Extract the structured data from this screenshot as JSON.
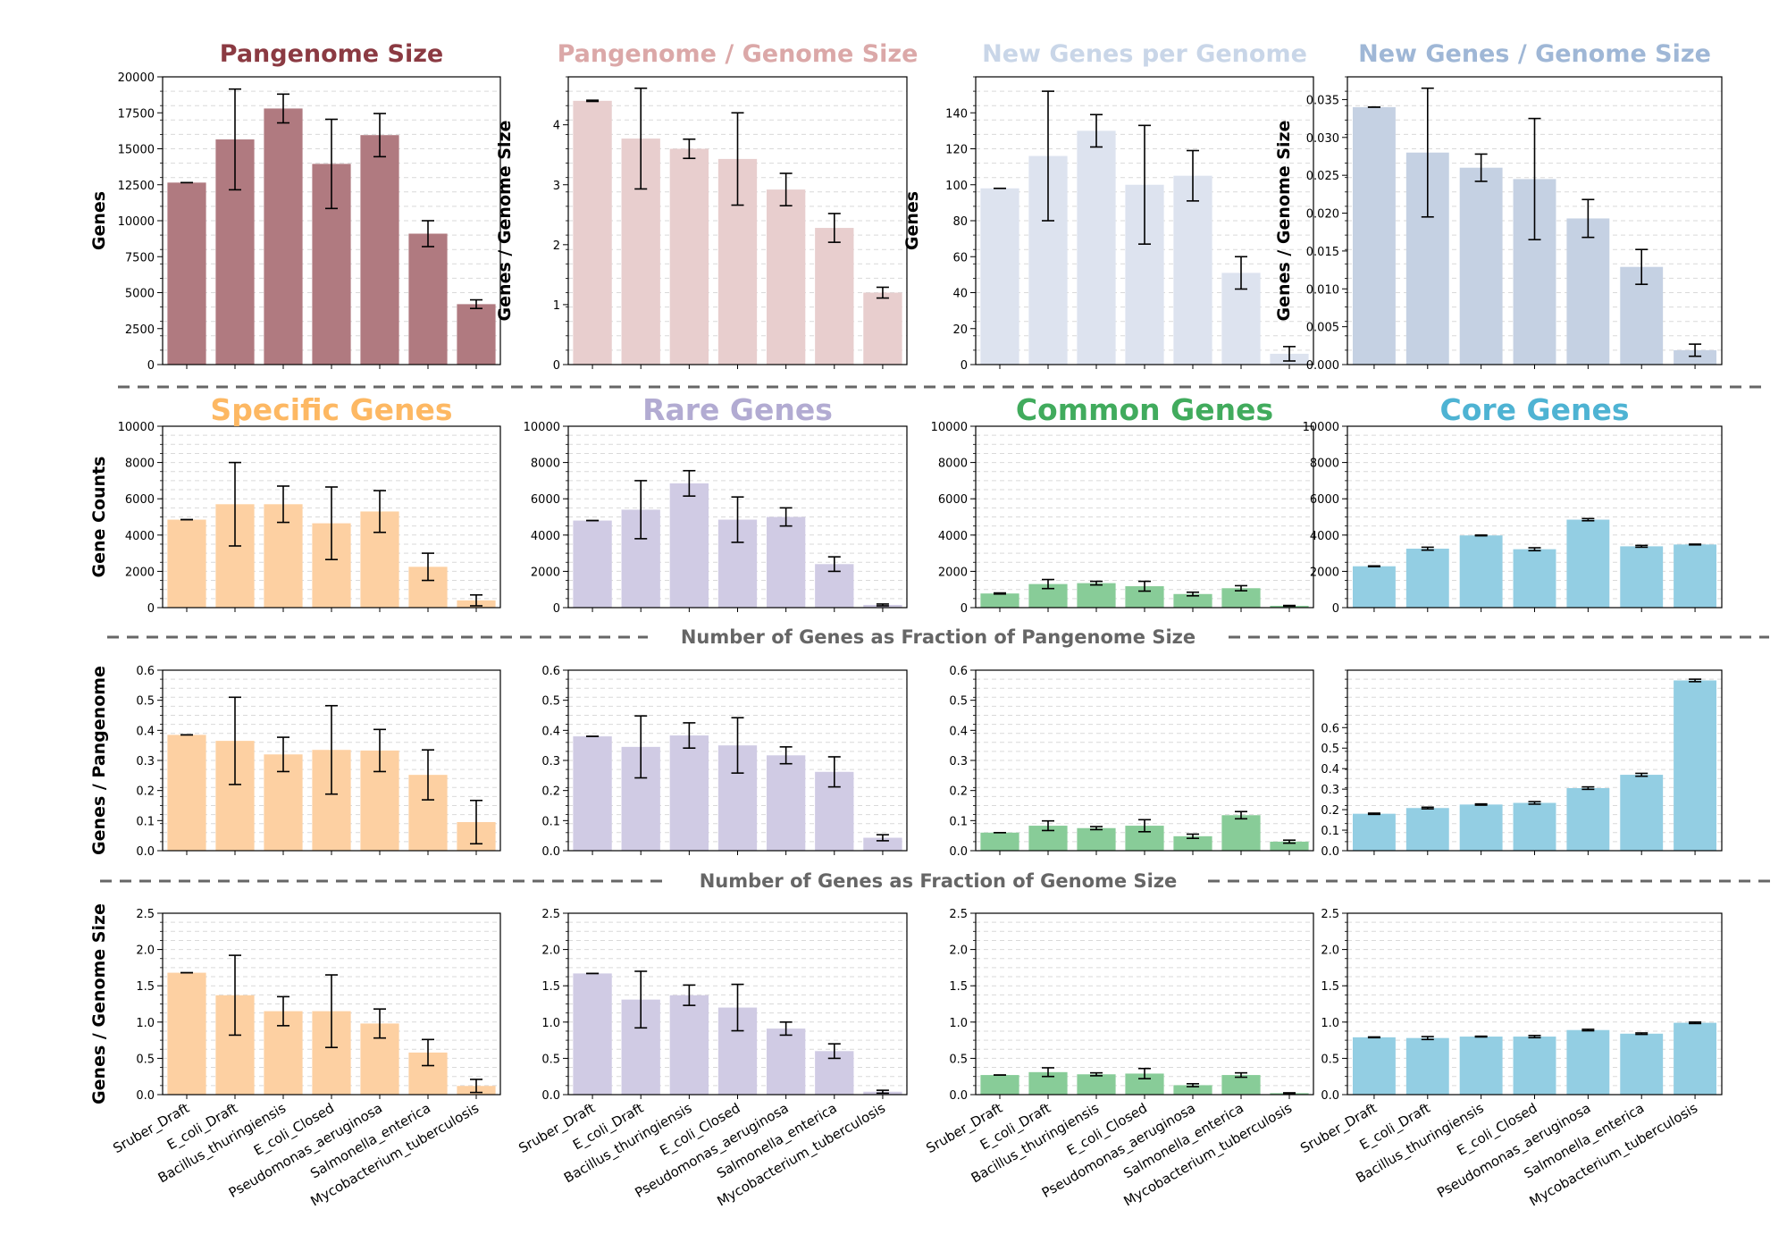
{
  "categories": [
    "Sruber_Draft",
    "E_coli_Draft",
    "Bacillus_thuringiensis",
    "E_coli_Closed",
    "Pseudomonas_aeruginosa",
    "Salmonella_enterica",
    "Mycobacterium_tuberculosis"
  ],
  "sections": {
    "fraction_pangenome": "Number of Genes as Fraction of Pangenome Size",
    "fraction_genome": "Number of Genes as Fraction of Genome Size"
  },
  "chart_data": [
    {
      "type": "bar",
      "title": "Pangenome Size",
      "title_color": "#8b3a42",
      "bar_color": "#b07a80",
      "ylabel": "Genes",
      "ylim": [
        0,
        20000
      ],
      "yticks": [
        "0",
        "2500",
        "5000",
        "7500",
        "10000",
        "12500",
        "15000",
        "17500",
        "20000"
      ],
      "values": [
        12650,
        15650,
        17800,
        13950,
        15950,
        9100,
        4200
      ],
      "errors": [
        0,
        3500,
        1000,
        3100,
        1500,
        900,
        300
      ]
    },
    {
      "type": "bar",
      "title": "Pangenome / Genome Size",
      "title_color": "#dba8a8",
      "bar_color": "#e8cece",
      "ylabel": "Genes / Genome Size",
      "ylim": [
        0,
        4.8
      ],
      "yticks": [
        "0",
        "1",
        "2",
        "3",
        "4"
      ],
      "values": [
        4.4,
        3.77,
        3.6,
        3.43,
        2.92,
        2.28,
        1.2
      ],
      "errors": [
        0.01,
        0.84,
        0.16,
        0.77,
        0.27,
        0.24,
        0.09
      ]
    },
    {
      "type": "bar",
      "title": "New Genes per Genome",
      "title_color": "#c9d6e8",
      "bar_color": "#dde3ef",
      "ylabel": "Genes",
      "ylim": [
        0,
        160
      ],
      "yticks": [
        "0",
        "20",
        "40",
        "60",
        "80",
        "100",
        "120",
        "140"
      ],
      "values": [
        98,
        116,
        130,
        100,
        105,
        51,
        6
      ],
      "errors": [
        0,
        36,
        9,
        33,
        14,
        9,
        4
      ]
    },
    {
      "type": "bar",
      "title": "New Genes / Genome Size",
      "title_color": "#9fb7d6",
      "bar_color": "#c5d1e3",
      "ylabel": "Genes / Genome Size",
      "ylim": [
        0,
        0.038
      ],
      "yticks": [
        "0.000",
        "0.005",
        "0.010",
        "0.015",
        "0.020",
        "0.025",
        "0.030",
        "0.035"
      ],
      "values": [
        0.034,
        0.028,
        0.026,
        0.0245,
        0.0193,
        0.0129,
        0.0019
      ],
      "errors": [
        0,
        0.0085,
        0.0018,
        0.008,
        0.0025,
        0.0023,
        0.0008
      ]
    },
    {
      "type": "bar",
      "title": "Specific Genes",
      "title_color": "#fdb863",
      "bar_color": "#fdd0a2",
      "ylabel": "Gene Counts",
      "ylim": [
        0,
        10000
      ],
      "yticks": [
        "0",
        "2000",
        "4000",
        "6000",
        "8000",
        "10000"
      ],
      "values": [
        4850,
        5700,
        5700,
        4650,
        5300,
        2250,
        400
      ],
      "errors": [
        0,
        2300,
        1000,
        2000,
        1150,
        750,
        300
      ]
    },
    {
      "type": "bar",
      "title": "Rare Genes",
      "title_color": "#b2abd2",
      "bar_color": "#d0cbe4",
      "ylabel": "",
      "ylim": [
        0,
        10000
      ],
      "yticks": [
        "0",
        "2000",
        "4000",
        "6000",
        "8000",
        "10000"
      ],
      "values": [
        4800,
        5400,
        6850,
        4850,
        5000,
        2400,
        150
      ],
      "errors": [
        0,
        1600,
        700,
        1250,
        500,
        400,
        50
      ]
    },
    {
      "type": "bar",
      "title": "Common Genes",
      "title_color": "#41ab5d",
      "bar_color": "#88cc98",
      "ylabel": "",
      "ylim": [
        0,
        10000
      ],
      "yticks": [
        "0",
        "2000",
        "4000",
        "6000",
        "8000",
        "10000"
      ],
      "values": [
        780,
        1300,
        1350,
        1180,
        750,
        1070,
        100
      ],
      "errors": [
        30,
        250,
        100,
        270,
        100,
        140,
        20
      ]
    },
    {
      "type": "bar",
      "title": "Core Genes",
      "title_color": "#4eb3d3",
      "bar_color": "#93cee3",
      "ylabel": "",
      "ylim": [
        0,
        10000
      ],
      "yticks": [
        "0",
        "2000",
        "4000",
        "6000",
        "8000",
        "10000"
      ],
      "values": [
        2280,
        3250,
        3980,
        3220,
        4850,
        3380,
        3480
      ],
      "errors": [
        20,
        80,
        20,
        80,
        60,
        50,
        20
      ]
    },
    {
      "type": "bar",
      "title": "",
      "bar_color": "#fdd0a2",
      "ylabel": "Genes / Pangenome",
      "ylim": [
        0,
        0.6
      ],
      "yticks": [
        "0.0",
        "0.1",
        "0.2",
        "0.3",
        "0.4",
        "0.5",
        "0.6"
      ],
      "values": [
        0.385,
        0.365,
        0.32,
        0.335,
        0.333,
        0.252,
        0.095
      ],
      "errors": [
        0,
        0.145,
        0.057,
        0.147,
        0.07,
        0.083,
        0.072
      ]
    },
    {
      "type": "bar",
      "title": "",
      "bar_color": "#d0cbe4",
      "ylabel": "",
      "ylim": [
        0,
        0.6
      ],
      "yticks": [
        "0.0",
        "0.1",
        "0.2",
        "0.3",
        "0.4",
        "0.5",
        "0.6"
      ],
      "values": [
        0.38,
        0.345,
        0.383,
        0.35,
        0.317,
        0.262,
        0.043
      ],
      "errors": [
        0,
        0.103,
        0.042,
        0.092,
        0.028,
        0.05,
        0.01
      ]
    },
    {
      "type": "bar",
      "title": "",
      "bar_color": "#88cc98",
      "ylabel": "",
      "ylim": [
        0,
        0.6
      ],
      "yticks": [
        "0.0",
        "0.1",
        "0.2",
        "0.3",
        "0.4",
        "0.5",
        "0.6"
      ],
      "values": [
        0.06,
        0.083,
        0.075,
        0.083,
        0.048,
        0.118,
        0.03
      ],
      "errors": [
        0,
        0.016,
        0.005,
        0.02,
        0.007,
        0.012,
        0.005
      ]
    },
    {
      "type": "bar",
      "title": "",
      "bar_color": "#93cee3",
      "ylabel": "",
      "ylim": [
        0,
        0.88
      ],
      "yticks": [
        "0.0",
        "0.1",
        "0.2",
        "0.3",
        "0.4",
        "0.5",
        "0.6"
      ],
      "values": [
        0.18,
        0.208,
        0.225,
        0.233,
        0.305,
        0.37,
        0.83
      ],
      "errors": [
        0.003,
        0.004,
        0.003,
        0.006,
        0.006,
        0.007,
        0.006
      ]
    },
    {
      "type": "bar",
      "title": "",
      "bar_color": "#fdd0a2",
      "ylabel": "Genes / Genome Size",
      "ylim": [
        0,
        2.5
      ],
      "yticks": [
        "0.0",
        "0.5",
        "1.0",
        "1.5",
        "2.0",
        "2.5"
      ],
      "values": [
        1.68,
        1.37,
        1.15,
        1.15,
        0.98,
        0.58,
        0.12
      ],
      "errors": [
        0,
        0.55,
        0.2,
        0.5,
        0.2,
        0.18,
        0.09
      ]
    },
    {
      "type": "bar",
      "title": "",
      "bar_color": "#d0cbe4",
      "ylabel": "",
      "ylim": [
        0,
        2.5
      ],
      "yticks": [
        "0.0",
        "0.5",
        "1.0",
        "1.5",
        "2.0",
        "2.5"
      ],
      "values": [
        1.67,
        1.31,
        1.37,
        1.2,
        0.91,
        0.6,
        0.04
      ],
      "errors": [
        0,
        0.39,
        0.14,
        0.32,
        0.09,
        0.1,
        0.02
      ]
    },
    {
      "type": "bar",
      "title": "",
      "bar_color": "#88cc98",
      "ylabel": "",
      "ylim": [
        0,
        2.5
      ],
      "yticks": [
        "0.0",
        "0.5",
        "1.0",
        "1.5",
        "2.0",
        "2.5"
      ],
      "values": [
        0.27,
        0.31,
        0.28,
        0.29,
        0.13,
        0.27,
        0.02
      ],
      "errors": [
        0,
        0.06,
        0.02,
        0.07,
        0.02,
        0.03,
        0.005
      ]
    },
    {
      "type": "bar",
      "title": "",
      "bar_color": "#93cee3",
      "ylabel": "",
      "ylim": [
        0,
        2.5
      ],
      "yticks": [
        "0.0",
        "0.5",
        "1.0",
        "1.5",
        "2.0",
        "2.5"
      ],
      "values": [
        0.79,
        0.78,
        0.8,
        0.8,
        0.89,
        0.84,
        0.99
      ],
      "errors": [
        0.005,
        0.02,
        0.005,
        0.015,
        0.01,
        0.01,
        0.01
      ]
    }
  ]
}
